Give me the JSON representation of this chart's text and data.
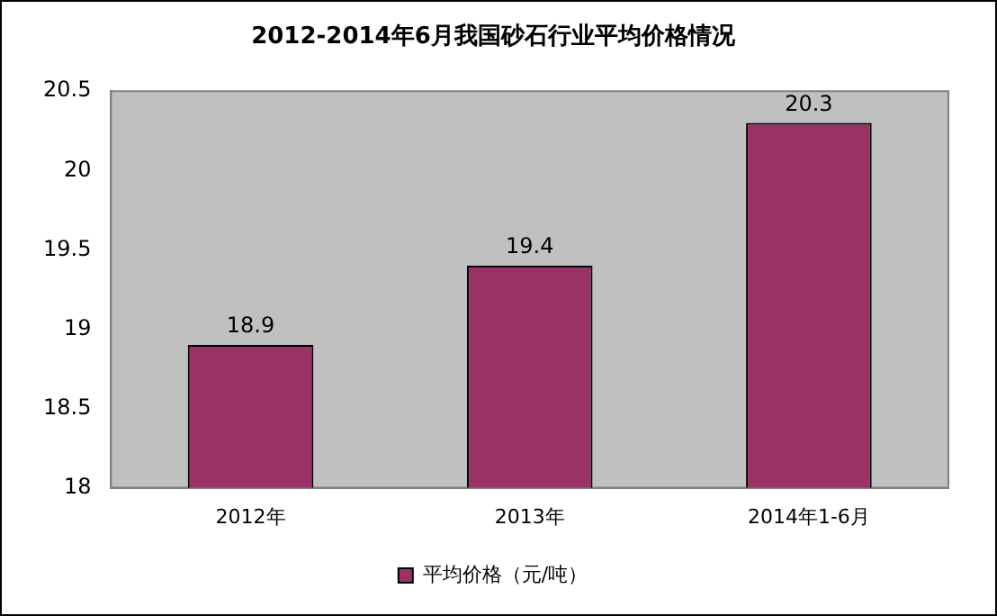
{
  "chart_data": {
    "type": "bar",
    "title": "2012-2014年6月我国砂石行业平均价格情况",
    "categories": [
      "2012年",
      "2013年",
      "2014年1-6月"
    ],
    "series": [
      {
        "name": "平均价格（元/吨）",
        "color": "#993366",
        "values": [
          18.9,
          19.4,
          20.3
        ]
      }
    ],
    "ylim": [
      18,
      20.5
    ],
    "yticks": [
      18,
      18.5,
      19,
      19.5,
      20,
      20.5
    ],
    "grid": false,
    "legend": "bottom",
    "data_labels": true
  }
}
